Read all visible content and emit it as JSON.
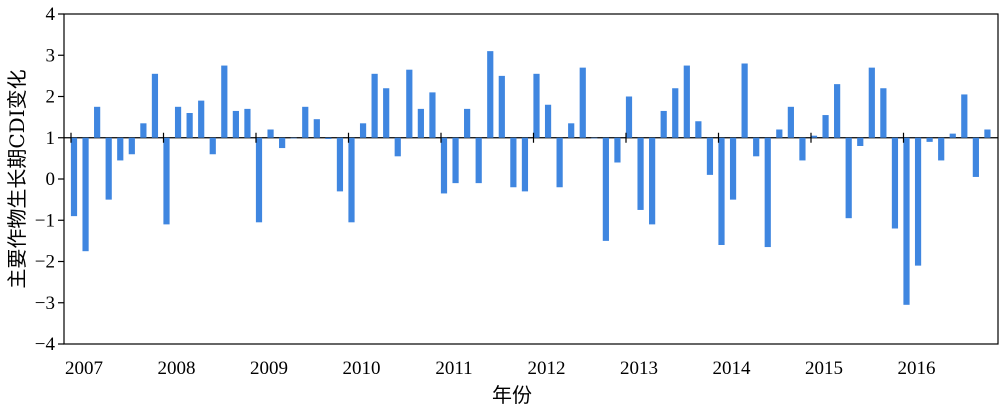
{
  "chart_data": {
    "type": "bar",
    "xlabel": "年份",
    "ylabel": "主要作物生长期CDI变化",
    "ylim": [
      -4,
      4
    ],
    "yticks": [
      -4,
      -3,
      -2,
      -1,
      0,
      1,
      2,
      3,
      4
    ],
    "year_ticks": [
      "2007",
      "2008",
      "2009",
      "2010",
      "2011",
      "2012",
      "2013",
      "2014",
      "2015",
      "2016"
    ],
    "baseline": 1,
    "bar_color": "#3f86e0",
    "values": [
      -0.9,
      -1.75,
      1.75,
      -0.5,
      0.45,
      0.6,
      1.35,
      2.55,
      -1.1,
      1.75,
      1.6,
      1.9,
      0.6,
      2.75,
      1.65,
      1.7,
      -1.05,
      1.2,
      0.75,
      1.0,
      1.75,
      1.45,
      0.97,
      -0.3,
      -1.05,
      1.35,
      2.55,
      2.2,
      0.55,
      2.65,
      1.7,
      2.1,
      -0.35,
      -0.1,
      1.7,
      -0.1,
      3.1,
      2.5,
      -0.2,
      -0.3,
      2.55,
      1.8,
      -0.2,
      1.35,
      2.7,
      1.0,
      -1.5,
      0.4,
      2.0,
      -0.75,
      -1.1,
      1.65,
      2.2,
      2.75,
      1.4,
      0.1,
      -1.6,
      -0.5,
      2.8,
      0.55,
      -1.65,
      1.2,
      1.75,
      0.45,
      1.05,
      1.55,
      2.3,
      -0.95,
      0.8,
      2.7,
      2.2,
      -1.2,
      -3.05,
      -2.1,
      0.9,
      0.45,
      1.1,
      2.05,
      0.05,
      1.2
    ]
  }
}
